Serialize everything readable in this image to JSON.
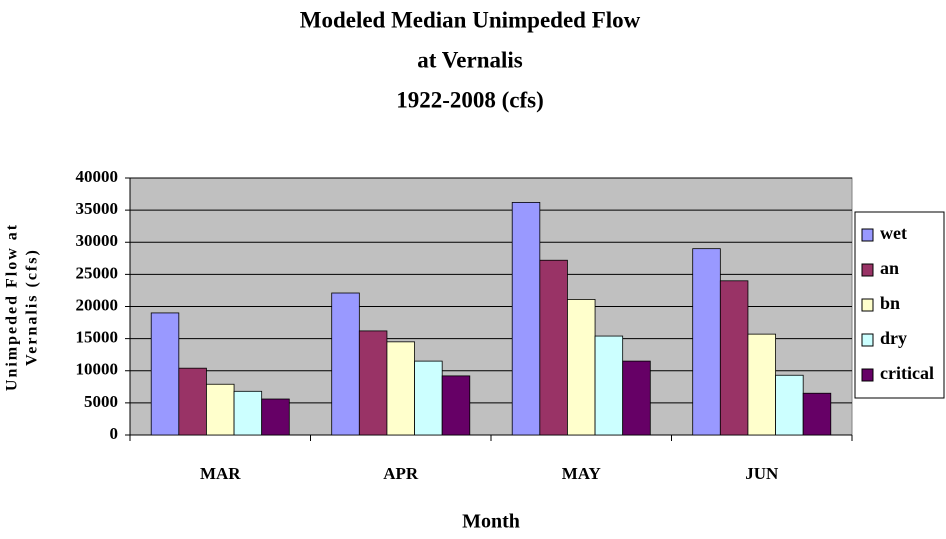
{
  "chart_data": {
    "type": "bar",
    "title": [
      "Modeled Median Unimpeded Flow",
      "at Vernalis",
      "1922-2008 (cfs)"
    ],
    "x_label": "Month",
    "y_label": [
      "Unimpeded Flow at",
      "Vernalis (cfs)"
    ],
    "categories": [
      "MAR",
      "APR",
      "MAY",
      "JUN"
    ],
    "series": [
      {
        "name": "wet",
        "color": "#9999ff",
        "values": [
          19000,
          22100,
          36200,
          29000
        ]
      },
      {
        "name": "an",
        "color": "#993366",
        "values": [
          10400,
          16200,
          27200,
          24000
        ]
      },
      {
        "name": "bn",
        "color": "#ffffcc",
        "values": [
          7900,
          14500,
          21100,
          15700
        ]
      },
      {
        "name": "dry",
        "color": "#ccffff",
        "values": [
          6800,
          11500,
          15400,
          9300
        ]
      },
      {
        "name": "critical",
        "color": "#660066",
        "values": [
          5600,
          9200,
          11500,
          6500
        ]
      }
    ],
    "ylim": [
      0,
      40000
    ],
    "yticks": [
      0,
      5000,
      10000,
      15000,
      20000,
      25000,
      30000,
      35000,
      40000
    ],
    "grid": true,
    "legend": "right"
  }
}
